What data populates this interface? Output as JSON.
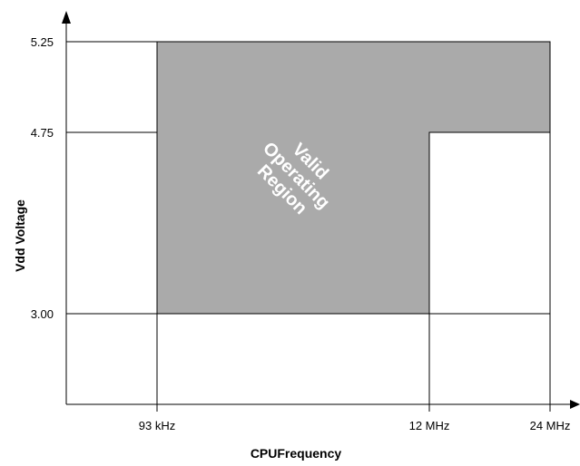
{
  "chart_data": {
    "type": "area",
    "title": "",
    "xlabel": "CPUFrequency",
    "ylabel": "Vdd Voltage",
    "x_ticks": [
      {
        "label": "93 kHz",
        "value": 0.093
      },
      {
        "label": "12 MHz",
        "value": 12
      },
      {
        "label": "24 MHz",
        "value": 24
      }
    ],
    "y_ticks": [
      {
        "label": "3.00",
        "value": 3.0
      },
      {
        "label": "4.75",
        "value": 4.75
      },
      {
        "label": "5.25",
        "value": 5.25
      }
    ],
    "region": {
      "label": [
        "Valid",
        "Operating",
        "Region"
      ],
      "fill": "#aaaaaa",
      "vertices": [
        [
          0.093,
          3.0
        ],
        [
          12,
          3.0
        ],
        [
          12,
          4.75
        ],
        [
          24,
          4.75
        ],
        [
          24,
          5.25
        ],
        [
          0.093,
          5.25
        ]
      ]
    },
    "grid": true
  }
}
